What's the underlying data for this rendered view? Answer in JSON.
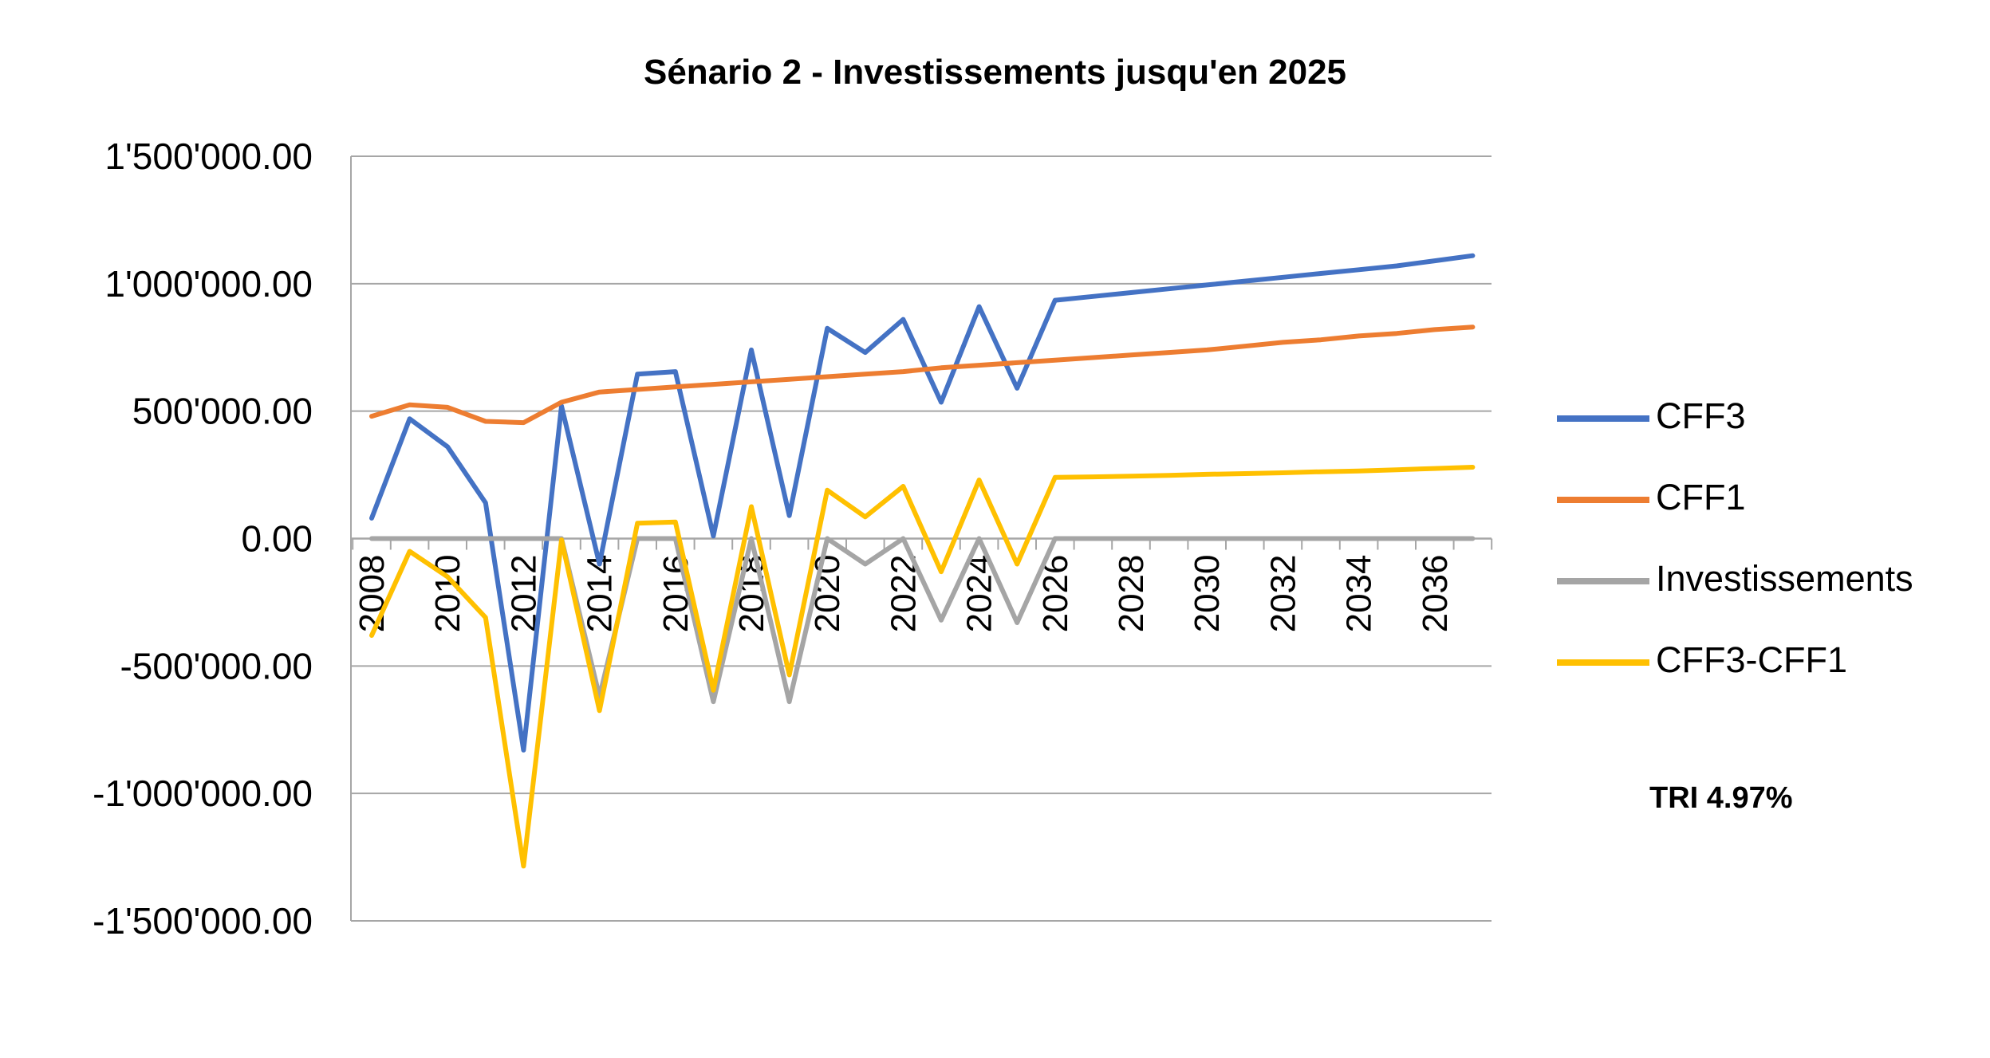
{
  "chart_data": {
    "type": "line",
    "title": "Sénario 2 - Investissements jusqu'en 2025",
    "xlabel": "",
    "ylabel": "",
    "x": [
      2008,
      2009,
      2010,
      2011,
      2012,
      2013,
      2014,
      2015,
      2016,
      2017,
      2018,
      2019,
      2020,
      2021,
      2022,
      2023,
      2024,
      2025,
      2026,
      2027,
      2028,
      2029,
      2030,
      2031,
      2032,
      2033,
      2034,
      2035,
      2036,
      2037
    ],
    "x_tick_labels": [
      "2008",
      "2010",
      "2012",
      "2014",
      "2016",
      "2018",
      "2020",
      "2022",
      "2024",
      "2026",
      "2028",
      "2030",
      "2032",
      "2034",
      "2036"
    ],
    "ylim": [
      -1500000,
      1500000
    ],
    "y_ticks": [
      1500000,
      1000000,
      500000,
      0,
      -500000,
      -1000000,
      -1500000
    ],
    "y_tick_labels": [
      "1'500'000.00",
      "1'000'000.00",
      "500'000.00",
      "0.00",
      "-500'000.00",
      "-1'000'000.00",
      "-1'500'000.00"
    ],
    "grid": true,
    "legend_position": "right",
    "series": [
      {
        "name": "CFF3",
        "color": "#4472C4",
        "values": [
          80000,
          470000,
          360000,
          140000,
          -830000,
          520000,
          -100000,
          645000,
          655000,
          10000,
          740000,
          90000,
          825000,
          730000,
          860000,
          535000,
          910000,
          590000,
          935000,
          950000,
          965000,
          980000,
          995000,
          1010000,
          1025000,
          1040000,
          1055000,
          1070000,
          1090000,
          1110000
        ]
      },
      {
        "name": "CFF1",
        "color": "#ED7D31",
        "values": [
          480000,
          525000,
          515000,
          460000,
          455000,
          535000,
          575000,
          585000,
          595000,
          605000,
          615000,
          625000,
          635000,
          645000,
          655000,
          670000,
          680000,
          690000,
          700000,
          710000,
          720000,
          730000,
          740000,
          755000,
          770000,
          780000,
          795000,
          805000,
          820000,
          830000
        ]
      },
      {
        "name": "Investissements",
        "color": "#A5A5A5",
        "values": [
          0,
          0,
          0,
          0,
          0,
          0,
          -620000,
          0,
          0,
          -640000,
          0,
          -640000,
          0,
          -100000,
          0,
          -320000,
          0,
          -330000,
          0,
          0,
          0,
          0,
          0,
          0,
          0,
          0,
          0,
          0,
          0,
          0
        ]
      },
      {
        "name": "CFF3-CFF1",
        "color": "#FFC000",
        "values": [
          -380000,
          -50000,
          -150000,
          -310000,
          -1285000,
          -5000,
          -675000,
          60000,
          65000,
          -595000,
          125000,
          -535000,
          190000,
          85000,
          205000,
          -130000,
          230000,
          -100000,
          240000,
          242000,
          245000,
          248000,
          252000,
          255000,
          258000,
          262000,
          265000,
          270000,
          275000,
          280000
        ]
      }
    ],
    "annotations": [
      "TRI 4.97%"
    ]
  }
}
